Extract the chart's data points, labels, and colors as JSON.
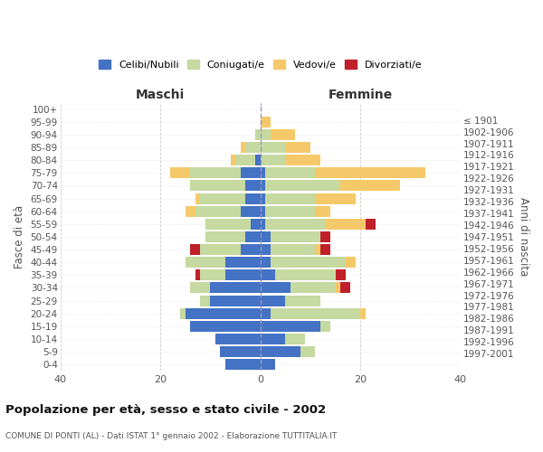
{
  "age_groups": [
    "0-4",
    "5-9",
    "10-14",
    "15-19",
    "20-24",
    "25-29",
    "30-34",
    "35-39",
    "40-44",
    "45-49",
    "50-54",
    "55-59",
    "60-64",
    "65-69",
    "70-74",
    "75-79",
    "80-84",
    "85-89",
    "90-94",
    "95-99",
    "100+"
  ],
  "birth_years": [
    "1997-2001",
    "1992-1996",
    "1987-1991",
    "1982-1986",
    "1977-1981",
    "1972-1976",
    "1967-1971",
    "1962-1966",
    "1957-1961",
    "1952-1956",
    "1947-1951",
    "1942-1946",
    "1937-1941",
    "1932-1936",
    "1927-1931",
    "1922-1926",
    "1917-1921",
    "1912-1916",
    "1907-1911",
    "1902-1906",
    "≤ 1901"
  ],
  "maschi": {
    "celibi": [
      7,
      8,
      9,
      14,
      15,
      10,
      10,
      7,
      7,
      4,
      3,
      2,
      4,
      3,
      3,
      4,
      1,
      0,
      0,
      0,
      0
    ],
    "coniugati": [
      0,
      0,
      0,
      0,
      1,
      2,
      4,
      5,
      8,
      8,
      8,
      9,
      9,
      9,
      11,
      10,
      4,
      3,
      1,
      0,
      0
    ],
    "vedovi": [
      0,
      0,
      0,
      0,
      0,
      0,
      0,
      0,
      0,
      0,
      0,
      0,
      2,
      1,
      0,
      4,
      1,
      1,
      0,
      0,
      0
    ],
    "divorziati": [
      0,
      0,
      0,
      0,
      0,
      0,
      0,
      1,
      0,
      2,
      0,
      0,
      0,
      0,
      0,
      0,
      0,
      0,
      0,
      0,
      0
    ]
  },
  "femmine": {
    "nubili": [
      3,
      8,
      5,
      12,
      2,
      5,
      6,
      3,
      2,
      2,
      2,
      1,
      1,
      1,
      1,
      1,
      0,
      0,
      0,
      0,
      0
    ],
    "coniugate": [
      0,
      3,
      4,
      2,
      18,
      7,
      9,
      12,
      15,
      9,
      10,
      12,
      10,
      10,
      15,
      10,
      5,
      5,
      2,
      0,
      0
    ],
    "vedove": [
      0,
      0,
      0,
      0,
      1,
      0,
      1,
      0,
      2,
      1,
      0,
      8,
      3,
      8,
      12,
      22,
      7,
      5,
      5,
      2,
      0
    ],
    "divorziate": [
      0,
      0,
      0,
      0,
      0,
      0,
      2,
      2,
      0,
      2,
      2,
      2,
      0,
      0,
      0,
      0,
      0,
      0,
      0,
      0,
      0
    ]
  },
  "colors": {
    "celibi_nubili": "#4472c4",
    "coniugati": "#c5d9a0",
    "vedovi": "#f5c96a",
    "divorziati": "#c0202a"
  },
  "xlim": [
    -40,
    40
  ],
  "xlabel_left": "Maschi",
  "xlabel_right": "Femmine",
  "ylabel_left": "Fasce di età",
  "ylabel_right": "Anni di nascita",
  "title": "Popolazione per età, sesso e stato civile - 2002",
  "subtitle": "COMUNE DI PONTI (AL) - Dati ISTAT 1° gennaio 2002 - Elaborazione TUTTITALIA.IT",
  "legend_labels": [
    "Celibi/Nubili",
    "Coniugati/e",
    "Vedovi/e",
    "Divorziati/e"
  ],
  "bg_color": "#ffffff",
  "grid_color": "#cccccc"
}
